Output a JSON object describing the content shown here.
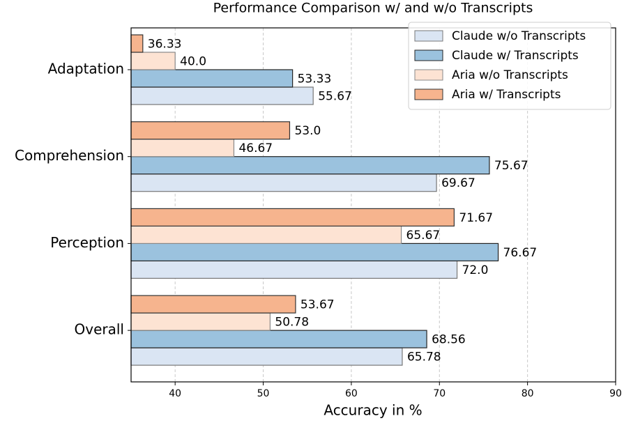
{
  "chart_data": {
    "type": "barh",
    "title": "Performance Comparison w/ and w/o Transcripts",
    "xlabel": "Accuracy in %",
    "categories": [
      "Adaptation",
      "Comprehension",
      "Perception",
      "Overall"
    ],
    "series": [
      {
        "name": "Claude w/o Transcripts",
        "color": "#dae5f3",
        "values": [
          55.67,
          69.67,
          72.0,
          65.78
        ],
        "value_labels": [
          "55.67",
          "69.67",
          "72.0",
          "65.78"
        ]
      },
      {
        "name": "Claude w/ Transcripts",
        "color": "#9bc2de",
        "values": [
          53.33,
          75.67,
          76.67,
          68.56
        ],
        "value_labels": [
          "53.33",
          "75.67",
          "76.67",
          "68.56"
        ]
      },
      {
        "name": "Aria w/o Transcripts",
        "color": "#fde3d3",
        "values": [
          40.0,
          46.67,
          65.67,
          50.78
        ],
        "value_labels": [
          "40.0",
          "46.67",
          "65.67",
          "50.78"
        ]
      },
      {
        "name": "Aria w/ Transcripts",
        "color": "#f6b48e",
        "values": [
          36.33,
          53.0,
          71.67,
          53.67
        ],
        "value_labels": [
          "36.33",
          "53.0",
          "71.67",
          "53.67"
        ]
      }
    ],
    "xlim": [
      35,
      90
    ],
    "xticks": [
      40,
      50,
      60,
      70,
      80,
      90
    ],
    "grid": true,
    "legend": "upper right"
  }
}
